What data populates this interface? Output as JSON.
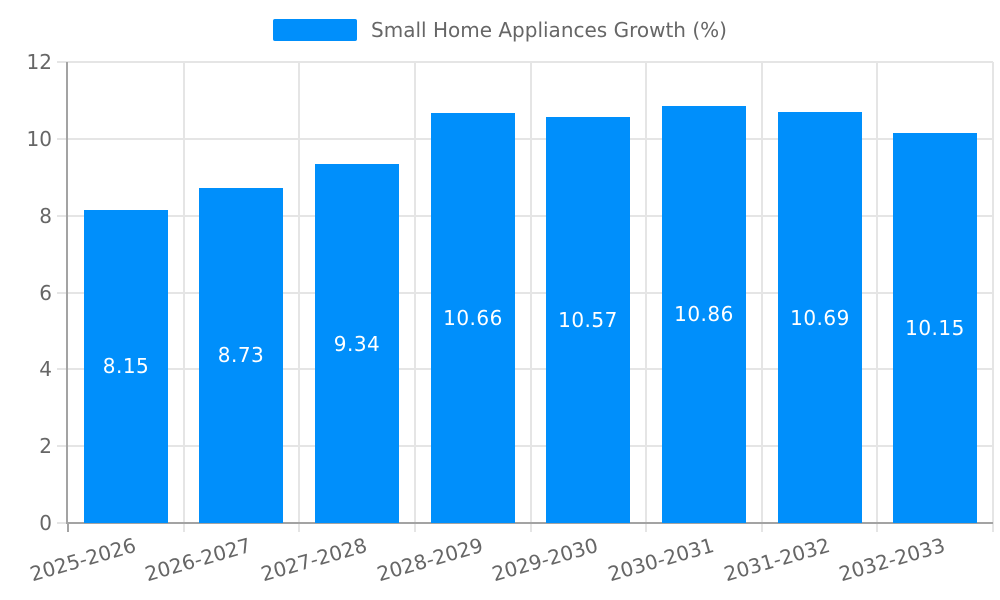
{
  "chart_data": {
    "type": "bar",
    "title": "Small Home Appliances Growth (%)",
    "legend_position": "top",
    "categories": [
      "2025-2026",
      "2026-2027",
      "2027-2028",
      "2028-2029",
      "2029-2030",
      "2030-2031",
      "2031-2032",
      "2032-2033"
    ],
    "values": [
      8.15,
      8.73,
      9.34,
      10.66,
      10.57,
      10.86,
      10.69,
      10.15
    ],
    "value_labels": [
      "8.15",
      "8.73",
      "9.34",
      "10.66",
      "10.57",
      "10.86",
      "10.69",
      "10.15"
    ],
    "xlabel": "",
    "ylabel": "",
    "ylim": [
      0,
      12
    ],
    "ytick_step": 2,
    "ytick_labels": [
      "0",
      "2",
      "4",
      "6",
      "8",
      "10",
      "12"
    ],
    "grid": true,
    "x_label_rotation_deg": -16,
    "colors": {
      "bar": "#008FFB",
      "value_text": "#FFFFFF",
      "axis_text": "#666666",
      "legend_text": "#666666",
      "grid_line": "#E5E5E5",
      "axis_line": "#A3A3A3"
    }
  }
}
